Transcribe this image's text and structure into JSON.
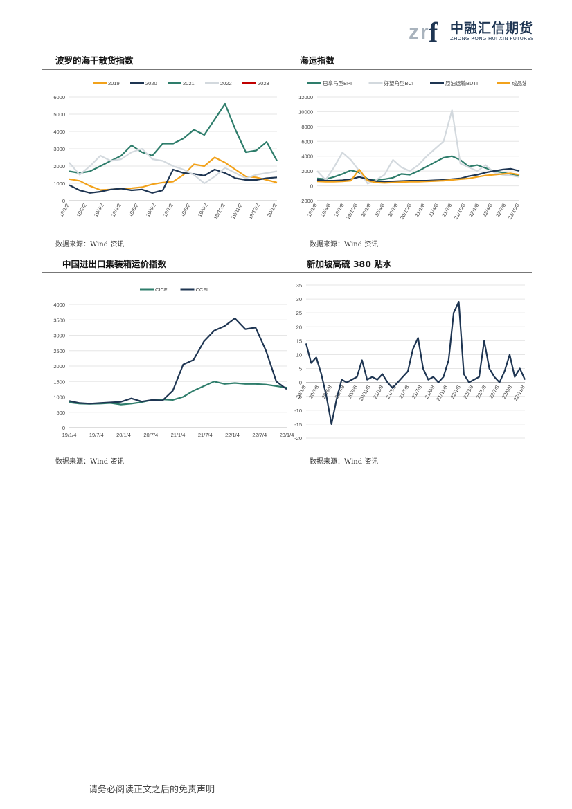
{
  "header": {
    "logo_mark": "zrf",
    "logo_cn": "中融汇信期货",
    "logo_en": "ZHONG RONG HUI XIN FUTURES"
  },
  "sections": {
    "bdi": {
      "title": "波罗的海干散货指数",
      "source": "数据来源：Wind 资讯"
    },
    "shipping": {
      "title": "海运指数",
      "source": "数据来源：Wind 资讯"
    },
    "container": {
      "title": "中国进出口集装箱运价指数",
      "source": "数据来源：Wind 资讯"
    },
    "fuel": {
      "title": "新加坡高硫 380 贴水",
      "source": "数据来源：Wind 资讯"
    }
  },
  "footer": {
    "text": "请务必阅读正文之后的免责声明"
  },
  "colors": {
    "orange": "#f2a21b",
    "navy": "#1e3552",
    "teal": "#2e7d6b",
    "gray": "#d3d9de",
    "red": "#c00000"
  },
  "chart_data": [
    {
      "type": "line",
      "ylim": [
        0,
        6000
      ],
      "yticks": [
        "6000",
        "5000",
        "4000",
        "3000",
        "2000",
        "1000",
        "0"
      ],
      "xticks": [
        "19/1/2",
        "19/2/2",
        "19/3/2",
        "19/4/2",
        "19/5/2",
        "19/6/2",
        "19/7/2",
        "19/8/2",
        "19/9/2",
        "19/10/2",
        "19/11/2",
        "19/12/2",
        "20/1/2"
      ],
      "legend_position": "top",
      "series": [
        {
          "name": "2019",
          "color": "#f2a21b",
          "values": [
            1250,
            1150,
            850,
            620,
            650,
            700,
            720,
            780,
            950,
            1050,
            1100,
            1500,
            2100,
            2000,
            2500,
            2200,
            1800,
            1400,
            1350,
            1200,
            1050
          ]
        },
        {
          "name": "2020",
          "color": "#1e3552",
          "values": [
            900,
            600,
            450,
            520,
            650,
            700,
            600,
            650,
            450,
            600,
            1800,
            1600,
            1550,
            1450,
            1800,
            1600,
            1300,
            1200,
            1200,
            1300,
            1350
          ]
        },
        {
          "name": "2021",
          "color": "#2e7d6b",
          "values": [
            1700,
            1600,
            1700,
            2000,
            2300,
            2600,
            3200,
            2800,
            2600,
            3300,
            3300,
            3600,
            4100,
            3800,
            4700,
            5600,
            4100,
            2800,
            2900,
            3400,
            2300
          ]
        },
        {
          "name": "2022",
          "color": "#d3d9de",
          "values": [
            2200,
            1500,
            2000,
            2600,
            2300,
            2400,
            2800,
            3000,
            2400,
            2300,
            2000,
            1800,
            1500,
            1000,
            1400,
            1900,
            1600,
            1300,
            1500,
            1600,
            1700
          ]
        },
        {
          "name": "2023",
          "color": "#c00000",
          "values": []
        }
      ]
    },
    {
      "type": "line",
      "ylim": [
        -2000,
        12000
      ],
      "yticks": [
        "12000",
        "10000",
        "8000",
        "6000",
        "4000",
        "2000",
        "0",
        "-2000"
      ],
      "xticks": [
        "19/1/8",
        "19/4/8",
        "19/7/8",
        "19/10/8",
        "20/1/8",
        "20/4/8",
        "20/7/8",
        "20/10/8",
        "21/1/8",
        "21/4/8",
        "21/7/8",
        "21/10/8",
        "22/1/8",
        "22/4/8",
        "22/7/8",
        "22/10/8"
      ],
      "legend_position": "top",
      "series": [
        {
          "name": "巴拿马型BPI",
          "color": "#2e7d6b",
          "values": [
            1000,
            900,
            1200,
            1600,
            2100,
            1800,
            900,
            800,
            900,
            1100,
            1600,
            1500,
            2000,
            2600,
            3200,
            3800,
            4000,
            3500,
            2600,
            2800,
            2400,
            2000,
            1800,
            1600,
            1400
          ]
        },
        {
          "name": "好望角型BCI",
          "color": "#d3d9de",
          "values": [
            2000,
            800,
            2500,
            4500,
            3500,
            2000,
            300,
            800,
            1500,
            3500,
            2500,
            2000,
            2800,
            4000,
            5000,
            6000,
            10200,
            3000,
            2500,
            2000,
            2800,
            1800,
            1500,
            1400,
            1200
          ]
        },
        {
          "name": "原油运输BDTI",
          "color": "#1e3552",
          "values": [
            800,
            700,
            700,
            750,
            900,
            1200,
            900,
            600,
            550,
            600,
            650,
            700,
            700,
            700,
            750,
            800,
            900,
            1000,
            1300,
            1500,
            1800,
            2000,
            2200,
            2300,
            2000
          ]
        },
        {
          "name": "成品油运输BCTI",
          "color": "#f2a21b",
          "values": [
            600,
            550,
            550,
            600,
            700,
            2200,
            700,
            450,
            400,
            450,
            500,
            550,
            550,
            600,
            650,
            700,
            800,
            900,
            1000,
            1200,
            1400,
            1500,
            1600,
            1700,
            1500
          ]
        }
      ]
    },
    {
      "type": "line",
      "ylim": [
        0,
        4000
      ],
      "yticks": [
        "4000",
        "3500",
        "3000",
        "2500",
        "2000",
        "1500",
        "1000",
        "500",
        "0"
      ],
      "xticks": [
        "19/1/4",
        "19/7/4",
        "20/1/4",
        "20/7/4",
        "21/1/4",
        "21/7/4",
        "22/1/4",
        "22/7/4",
        "23/1/4"
      ],
      "legend_position": "top",
      "series": [
        {
          "name": "CICFI",
          "color": "#2e7d6b",
          "values": [
            820,
            780,
            770,
            780,
            800,
            750,
            780,
            830,
            900,
            920,
            900,
            1000,
            1200,
            1350,
            1500,
            1420,
            1450,
            1420,
            1420,
            1400,
            1350,
            1300
          ]
        },
        {
          "name": "CCFI",
          "color": "#1e3552",
          "values": [
            870,
            800,
            780,
            800,
            820,
            840,
            950,
            850,
            900,
            880,
            1200,
            2050,
            2200,
            2800,
            3150,
            3300,
            3550,
            3200,
            3250,
            2500,
            1500,
            1250
          ]
        }
      ]
    },
    {
      "type": "line",
      "ylim": [
        -20,
        35
      ],
      "yticks": [
        "35",
        "30",
        "25",
        "20",
        "15",
        "10",
        "5",
        "0",
        "-5",
        "-10",
        "-15",
        "-20"
      ],
      "xticks": [
        "20/1/8",
        "20/3/8",
        "20/5/8",
        "20/7/8",
        "20/9/8",
        "20/11/8",
        "21/1/8",
        "21/3/8",
        "21/5/8",
        "21/7/8",
        "21/9/8",
        "21/11/8",
        "22/1/8",
        "22/3/8",
        "22/5/8",
        "22/7/8",
        "22/9/8",
        "22/11/8"
      ],
      "legend_position": "none",
      "series": [
        {
          "name": "",
          "color": "#1e3552",
          "values": [
            14,
            7,
            9,
            3,
            -5,
            -15,
            -6,
            1,
            0,
            1,
            2,
            8,
            1,
            2,
            1,
            3,
            0,
            -2,
            0,
            2,
            4,
            12,
            16,
            5,
            1,
            2,
            0,
            2,
            8,
            25,
            29,
            3,
            0,
            1,
            2,
            15,
            5,
            2,
            0,
            4,
            10,
            2,
            5,
            1
          ]
        }
      ]
    }
  ]
}
